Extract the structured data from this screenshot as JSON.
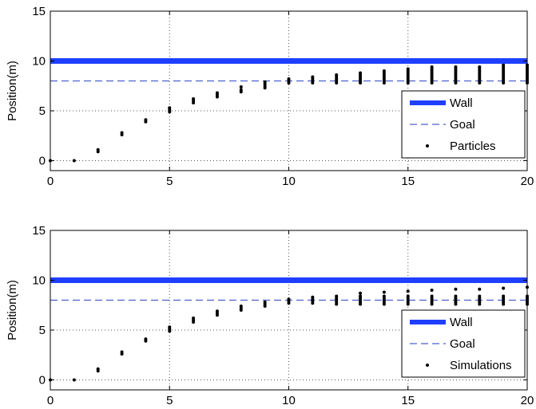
{
  "chart_data": [
    {
      "type": "scatter",
      "ylabel": "Position(m)",
      "xlabel": "",
      "xlim": [
        0,
        20
      ],
      "ylim": [
        -1,
        15
      ],
      "xticks": [
        0,
        5,
        10,
        15,
        20
      ],
      "yticks": [
        0,
        5,
        10,
        15
      ],
      "grid": "dotted",
      "legend_position": "bottom-right",
      "wall": {
        "name": "Wall",
        "y": 10,
        "color": "#1f3fff"
      },
      "goal": {
        "name": "Goal",
        "y": 8,
        "color": "#4a5fd0"
      },
      "points_name": "Particles",
      "points": [
        {
          "x": 0,
          "y": [
            0
          ]
        },
        {
          "x": 1,
          "y": [
            0
          ]
        },
        {
          "x": 2,
          "y": [
            0.9,
            1.1
          ]
        },
        {
          "x": 3,
          "y": [
            2.6,
            2.8
          ]
        },
        {
          "x": 4,
          "y": [
            3.9,
            4.1
          ]
        },
        {
          "x": 5,
          "y": [
            4.9,
            5.1,
            5.3
          ]
        },
        {
          "x": 6,
          "y": [
            5.8,
            6.0,
            6.2
          ]
        },
        {
          "x": 7,
          "y": [
            6.4,
            6.6,
            6.8
          ]
        },
        {
          "x": 8,
          "y": [
            6.9,
            7.1,
            7.4
          ]
        },
        {
          "x": 9,
          "y": [
            7.3,
            7.5,
            7.7,
            7.9
          ]
        },
        {
          "x": 10,
          "y": [
            7.8,
            8.0,
            8.2
          ]
        },
        {
          "x": 11,
          "y": [
            7.8,
            8.0,
            8.2,
            8.4
          ]
        },
        {
          "x": 12,
          "y": [
            7.8,
            8.0,
            8.2,
            8.4,
            8.6
          ]
        },
        {
          "x": 13,
          "y": [
            7.8,
            8.0,
            8.2,
            8.4,
            8.6,
            8.8
          ]
        },
        {
          "x": 14,
          "y": [
            7.8,
            8.0,
            8.2,
            8.4,
            8.6,
            8.8,
            9.0
          ]
        },
        {
          "x": 15,
          "y": [
            7.8,
            8.0,
            8.2,
            8.4,
            8.6,
            8.8,
            9.0,
            9.2
          ]
        },
        {
          "x": 16,
          "y": [
            7.8,
            8.0,
            8.2,
            8.4,
            8.6,
            8.8,
            9.0,
            9.2,
            9.4
          ]
        },
        {
          "x": 17,
          "y": [
            7.8,
            8.0,
            8.2,
            8.4,
            8.6,
            8.8,
            9.0,
            9.2,
            9.4
          ]
        },
        {
          "x": 18,
          "y": [
            7.8,
            8.0,
            8.2,
            8.4,
            8.6,
            8.8,
            9.0,
            9.2,
            9.4
          ]
        },
        {
          "x": 19,
          "y": [
            7.8,
            8.0,
            8.2,
            8.4,
            8.6,
            8.8,
            9.0,
            9.2,
            9.4,
            9.6
          ]
        },
        {
          "x": 20,
          "y": [
            7.8,
            8.0,
            8.2,
            8.4,
            8.6,
            8.8,
            9.0,
            9.2,
            9.4,
            9.6
          ]
        }
      ]
    },
    {
      "type": "scatter",
      "ylabel": "Position(m)",
      "xlabel": "",
      "xlim": [
        0,
        20
      ],
      "ylim": [
        -1,
        15
      ],
      "xticks": [
        0,
        5,
        10,
        15,
        20
      ],
      "yticks": [
        0,
        5,
        10,
        15
      ],
      "grid": "dotted",
      "legend_position": "bottom-right",
      "wall": {
        "name": "Wall",
        "y": 10,
        "color": "#1f3fff"
      },
      "goal": {
        "name": "Goal",
        "y": 8,
        "color": "#4a5fd0"
      },
      "points_name": "Simulations",
      "points": [
        {
          "x": 0,
          "y": [
            0
          ]
        },
        {
          "x": 1,
          "y": [
            0
          ]
        },
        {
          "x": 2,
          "y": [
            0.9,
            1.1
          ]
        },
        {
          "x": 3,
          "y": [
            2.6,
            2.8
          ]
        },
        {
          "x": 4,
          "y": [
            3.9,
            4.1
          ]
        },
        {
          "x": 5,
          "y": [
            4.9,
            5.1,
            5.3
          ]
        },
        {
          "x": 6,
          "y": [
            5.8,
            6.0,
            6.2
          ]
        },
        {
          "x": 7,
          "y": [
            6.5,
            6.7,
            6.9
          ]
        },
        {
          "x": 8,
          "y": [
            7.0,
            7.2,
            7.4
          ]
        },
        {
          "x": 9,
          "y": [
            7.4,
            7.6,
            7.8
          ]
        },
        {
          "x": 10,
          "y": [
            7.7,
            7.9,
            8.1
          ]
        },
        {
          "x": 11,
          "y": [
            7.7,
            7.9,
            8.1,
            8.3
          ]
        },
        {
          "x": 12,
          "y": [
            7.6,
            7.8,
            8.0,
            8.2,
            8.4
          ]
        },
        {
          "x": 13,
          "y": [
            7.6,
            7.8,
            8.0,
            8.2,
            8.4,
            8.7
          ]
        },
        {
          "x": 14,
          "y": [
            7.6,
            7.8,
            8.0,
            8.2,
            8.4,
            8.8
          ]
        },
        {
          "x": 15,
          "y": [
            7.6,
            7.8,
            8.0,
            8.2,
            8.4,
            8.9
          ]
        },
        {
          "x": 16,
          "y": [
            7.6,
            7.8,
            8.0,
            8.2,
            8.4,
            9.0
          ]
        },
        {
          "x": 17,
          "y": [
            7.6,
            7.8,
            8.0,
            8.2,
            8.4,
            9.1
          ]
        },
        {
          "x": 18,
          "y": [
            7.6,
            7.8,
            8.0,
            8.2,
            8.4,
            9.1
          ]
        },
        {
          "x": 19,
          "y": [
            7.6,
            7.8,
            8.0,
            8.2,
            8.4,
            9.2
          ]
        },
        {
          "x": 20,
          "y": [
            7.6,
            7.8,
            8.0,
            8.2,
            8.4,
            9.3
          ]
        }
      ]
    }
  ]
}
